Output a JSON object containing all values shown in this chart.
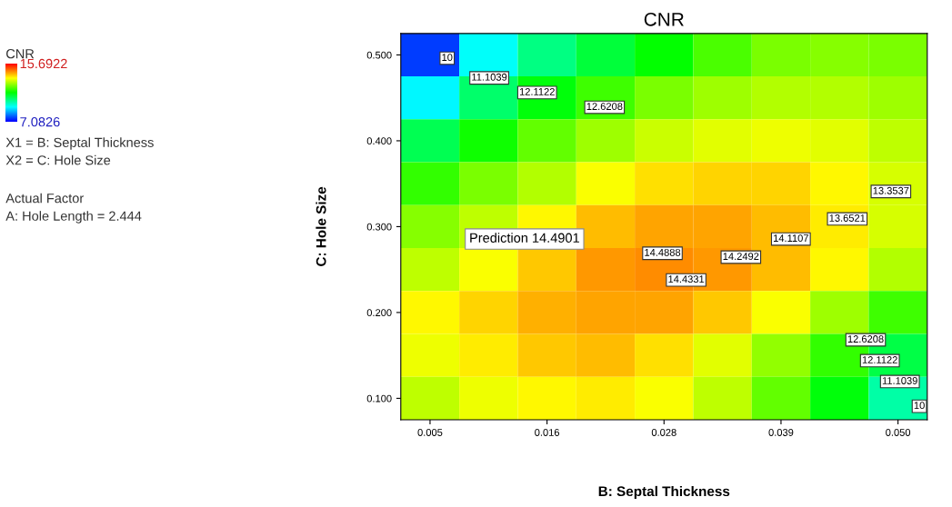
{
  "chart_data": {
    "type": "heatmap",
    "title": "CNR",
    "xlabel": "B: Septal Thickness",
    "ylabel": "C: Hole Size",
    "clabel": "CNR",
    "categories": [
      "0.005",
      null,
      "0.016",
      null,
      "0.028",
      null,
      "0.039",
      null,
      "0.050"
    ],
    "y_categories": [
      "0.500",
      null,
      "0.400",
      null,
      "0.300",
      null,
      "0.200",
      null,
      "0.100"
    ],
    "cells": [
      [
        7.6,
        9.3,
        10.3,
        10.9,
        11.4,
        12.0,
        12.4,
        12.5,
        12.4
      ],
      [
        9.2,
        10.5,
        11.3,
        11.9,
        12.4,
        12.7,
        12.9,
        12.9,
        12.7
      ],
      [
        10.7,
        11.5,
        12.2,
        12.7,
        13.1,
        13.3,
        13.4,
        13.3,
        13.0
      ],
      [
        11.8,
        12.4,
        12.9,
        13.5,
        13.8,
        13.9,
        13.9,
        13.6,
        13.2
      ],
      [
        12.5,
        13.0,
        13.6,
        14.1,
        14.3,
        14.3,
        14.1,
        13.7,
        13.2
      ],
      [
        13.0,
        13.5,
        14.0,
        14.4,
        14.5,
        14.4,
        14.1,
        13.6,
        12.9
      ],
      [
        13.6,
        13.9,
        14.2,
        14.3,
        14.3,
        14.0,
        13.5,
        12.7,
        11.9
      ],
      [
        13.4,
        13.7,
        14.0,
        14.1,
        13.8,
        13.3,
        12.6,
        11.8,
        10.8
      ],
      [
        13.0,
        13.4,
        13.6,
        13.7,
        13.5,
        13.0,
        12.2,
        11.3,
        10.0
      ]
    ],
    "clim": [
      7.0826,
      15.6922
    ],
    "cticks": [
      7.0826,
      15.6922
    ],
    "annotations": [
      "X1 = B: Septal Thickness",
      "X2 = C: Hole Size",
      "Actual Factor",
      "A: Hole Length = 2.444",
      "10",
      "11.1039",
      "12.1122",
      "12.6208",
      "13.3537",
      "13.6521",
      "14.1107",
      "14.2492",
      "14.4888",
      "14.4331",
      "Prediction 14.4901",
      "12.6208",
      "12.1122",
      "11.1039",
      "10"
    ]
  }
}
